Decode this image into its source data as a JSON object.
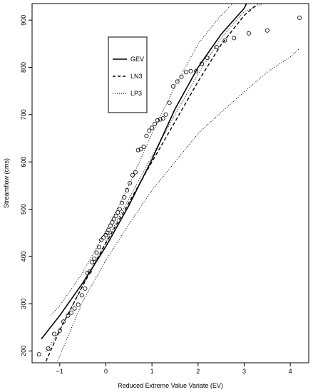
{
  "chart_data": {
    "type": "scatter",
    "xlabel": "Reduced Extreme Value Variate (EV)",
    "ylabel": "Streamflow (cms)",
    "xlim": [
      -1.6,
      4.4
    ],
    "ylim": [
      175,
      935
    ],
    "x_ticks": [
      -1,
      0,
      1,
      2,
      3,
      4
    ],
    "y_ticks": [
      200,
      300,
      400,
      500,
      600,
      700,
      800,
      900
    ],
    "x_tick_labels": [
      "−1",
      "0",
      "1",
      "2",
      "3",
      "4"
    ],
    "y_tick_labels": [
      "200",
      "300",
      "400",
      "500",
      "600",
      "700",
      "800",
      "900"
    ],
    "legend": {
      "position": "upper-left",
      "entries": [
        {
          "label": "GEV",
          "style": "solid"
        },
        {
          "label": "LN3",
          "style": "dashed"
        },
        {
          "label": "LP3",
          "style": "dotted"
        }
      ]
    },
    "series": [
      {
        "name": "GEV",
        "kind": "line",
        "style": "solid",
        "x": [
          -1.4,
          -1.0,
          -0.5,
          0.0,
          0.5,
          1.0,
          1.5,
          2.0,
          2.5,
          3.0,
          3.05
        ],
        "y": [
          225,
          275,
          344,
          421,
          508,
          605,
          712,
          800,
          870,
          925,
          935
        ]
      },
      {
        "name": "LN3",
        "kind": "line",
        "style": "dashed",
        "x": [
          -1.3,
          -1.0,
          -0.5,
          0.0,
          0.5,
          1.0,
          1.5,
          2.0,
          2.5,
          3.0,
          3.3
        ],
        "y": [
          178,
          244,
          338,
          428,
          514,
          600,
          685,
          770,
          848,
          910,
          935
        ]
      },
      {
        "name": "LP3 upper bound",
        "kind": "line",
        "style": "dotted",
        "x": [
          -1.2,
          -1.0,
          -0.5,
          0.0,
          0.5,
          1.0,
          1.5,
          2.0,
          2.5,
          2.75
        ],
        "y": [
          275,
          296,
          366,
          454,
          550,
          660,
          760,
          850,
          910,
          935
        ]
      },
      {
        "name": "LP3 mid",
        "kind": "line",
        "style": "dotted",
        "x": [
          -1.3,
          -1.0,
          -0.5,
          0.0,
          0.5,
          1.0,
          1.5,
          2.0,
          2.5,
          3.0,
          3.4
        ],
        "y": [
          198,
          244,
          340,
          432,
          522,
          612,
          700,
          786,
          862,
          918,
          935
        ]
      },
      {
        "name": "LP3 lower bound",
        "kind": "line",
        "style": "dotted",
        "x": [
          -1.05,
          -0.5,
          0.0,
          0.5,
          1.0,
          1.5,
          2.0,
          2.5,
          3.0,
          3.5,
          4.0,
          4.2
        ],
        "y": [
          178,
          305,
          392,
          468,
          540,
          600,
          660,
          705,
          748,
          790,
          822,
          840
        ]
      },
      {
        "name": "Observed",
        "kind": "points",
        "marker": "open-circle",
        "x": [
          -1.45,
          -1.25,
          -1.12,
          -1.0,
          -0.92,
          -0.82,
          -0.75,
          -0.68,
          -0.6,
          -0.52,
          -0.45,
          -0.4,
          -0.35,
          -0.3,
          -0.25,
          -0.2,
          -0.15,
          -0.1,
          -0.05,
          0.0,
          0.03,
          0.06,
          0.1,
          0.14,
          0.18,
          0.22,
          0.26,
          0.3,
          0.35,
          0.4,
          0.46,
          0.52,
          0.58,
          0.64,
          0.7,
          0.76,
          0.82,
          0.88,
          0.94,
          1.0,
          1.06,
          1.12,
          1.18,
          1.24,
          1.3,
          1.38,
          1.46,
          1.55,
          1.64,
          1.74,
          1.84,
          1.96,
          2.08,
          2.2,
          2.4,
          2.58,
          2.78,
          3.1,
          3.5,
          4.2
        ],
        "y": [
          193,
          205,
          236,
          243,
          262,
          275,
          281,
          290,
          298,
          318,
          332,
          365,
          368,
          388,
          395,
          408,
          420,
          435,
          440,
          445,
          450,
          456,
          465,
          472,
          479,
          486,
          493,
          500,
          513,
          525,
          540,
          555,
          572,
          578,
          625,
          627,
          632,
          655,
          666,
          672,
          680,
          688,
          690,
          692,
          700,
          725,
          760,
          770,
          780,
          790,
          792,
          792,
          808,
          820,
          843,
          857,
          862,
          872,
          878,
          905
        ]
      }
    ]
  }
}
